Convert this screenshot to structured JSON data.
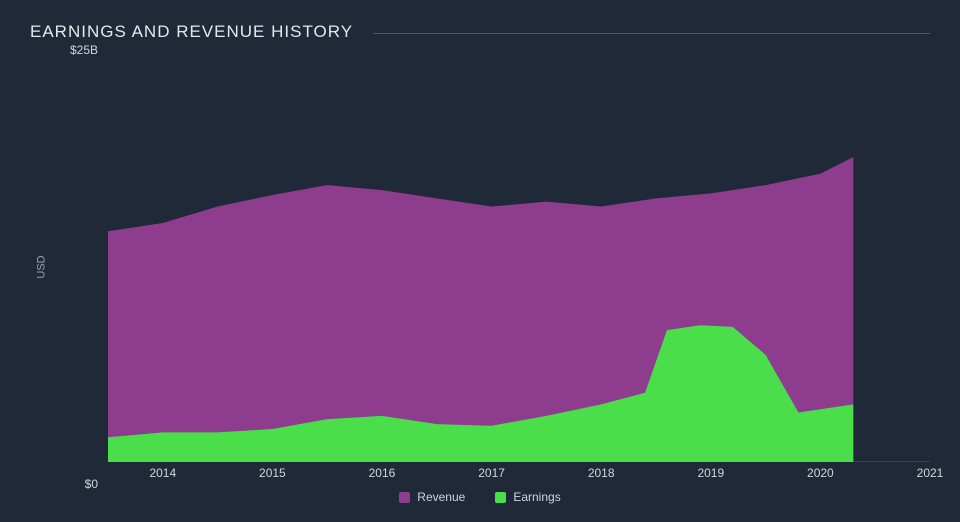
{
  "chart": {
    "type": "area",
    "title": "EARNINGS AND REVENUE HISTORY",
    "background_color": "#1f2937",
    "grid_color": "#334155",
    "axis_color": "#4b5563",
    "text_color": "#d1d5db",
    "title_color": "#e5e7eb",
    "title_fontsize": 17,
    "label_fontsize": 12,
    "y_axis": {
      "label": "USD",
      "min": 0,
      "max": 25,
      "ticks": [
        {
          "value": 0,
          "label": "$0"
        },
        {
          "value": 25,
          "label": "$25B"
        }
      ]
    },
    "x_axis": {
      "min": 2013.5,
      "max": 2021,
      "ticks": [
        {
          "value": 2014,
          "label": "2014"
        },
        {
          "value": 2015,
          "label": "2015"
        },
        {
          "value": 2016,
          "label": "2016"
        },
        {
          "value": 2017,
          "label": "2017"
        },
        {
          "value": 2018,
          "label": "2018"
        },
        {
          "value": 2019,
          "label": "2019"
        },
        {
          "value": 2020,
          "label": "2020"
        },
        {
          "value": 2021,
          "label": "2021"
        }
      ]
    },
    "series": [
      {
        "name": "Revenue",
        "color": "#8e3c8e",
        "opacity": 1.0,
        "points": [
          {
            "x": 2013.5,
            "y": 14.0
          },
          {
            "x": 2014.0,
            "y": 14.5
          },
          {
            "x": 2014.5,
            "y": 15.5
          },
          {
            "x": 2015.0,
            "y": 16.2
          },
          {
            "x": 2015.5,
            "y": 16.8
          },
          {
            "x": 2016.0,
            "y": 16.5
          },
          {
            "x": 2016.5,
            "y": 16.0
          },
          {
            "x": 2017.0,
            "y": 15.5
          },
          {
            "x": 2017.5,
            "y": 15.8
          },
          {
            "x": 2018.0,
            "y": 15.5
          },
          {
            "x": 2018.5,
            "y": 16.0
          },
          {
            "x": 2019.0,
            "y": 16.3
          },
          {
            "x": 2019.5,
            "y": 16.8
          },
          {
            "x": 2020.0,
            "y": 17.5
          },
          {
            "x": 2020.3,
            "y": 18.5
          }
        ]
      },
      {
        "name": "Earnings",
        "color": "#4ade4a",
        "opacity": 1.0,
        "points": [
          {
            "x": 2013.5,
            "y": 1.5
          },
          {
            "x": 2014.0,
            "y": 1.8
          },
          {
            "x": 2014.5,
            "y": 1.8
          },
          {
            "x": 2015.0,
            "y": 2.0
          },
          {
            "x": 2015.5,
            "y": 2.6
          },
          {
            "x": 2016.0,
            "y": 2.8
          },
          {
            "x": 2016.5,
            "y": 2.3
          },
          {
            "x": 2017.0,
            "y": 2.2
          },
          {
            "x": 2017.5,
            "y": 2.8
          },
          {
            "x": 2018.0,
            "y": 3.5
          },
          {
            "x": 2018.4,
            "y": 4.2
          },
          {
            "x": 2018.6,
            "y": 8.0
          },
          {
            "x": 2018.9,
            "y": 8.3
          },
          {
            "x": 2019.2,
            "y": 8.2
          },
          {
            "x": 2019.5,
            "y": 6.5
          },
          {
            "x": 2019.8,
            "y": 3.0
          },
          {
            "x": 2020.0,
            "y": 3.2
          },
          {
            "x": 2020.3,
            "y": 3.5
          }
        ]
      }
    ],
    "legend": [
      {
        "label": "Revenue",
        "color": "#8e3c8e"
      },
      {
        "label": "Earnings",
        "color": "#4ade4a"
      }
    ],
    "data_end_x": 2020.3
  }
}
